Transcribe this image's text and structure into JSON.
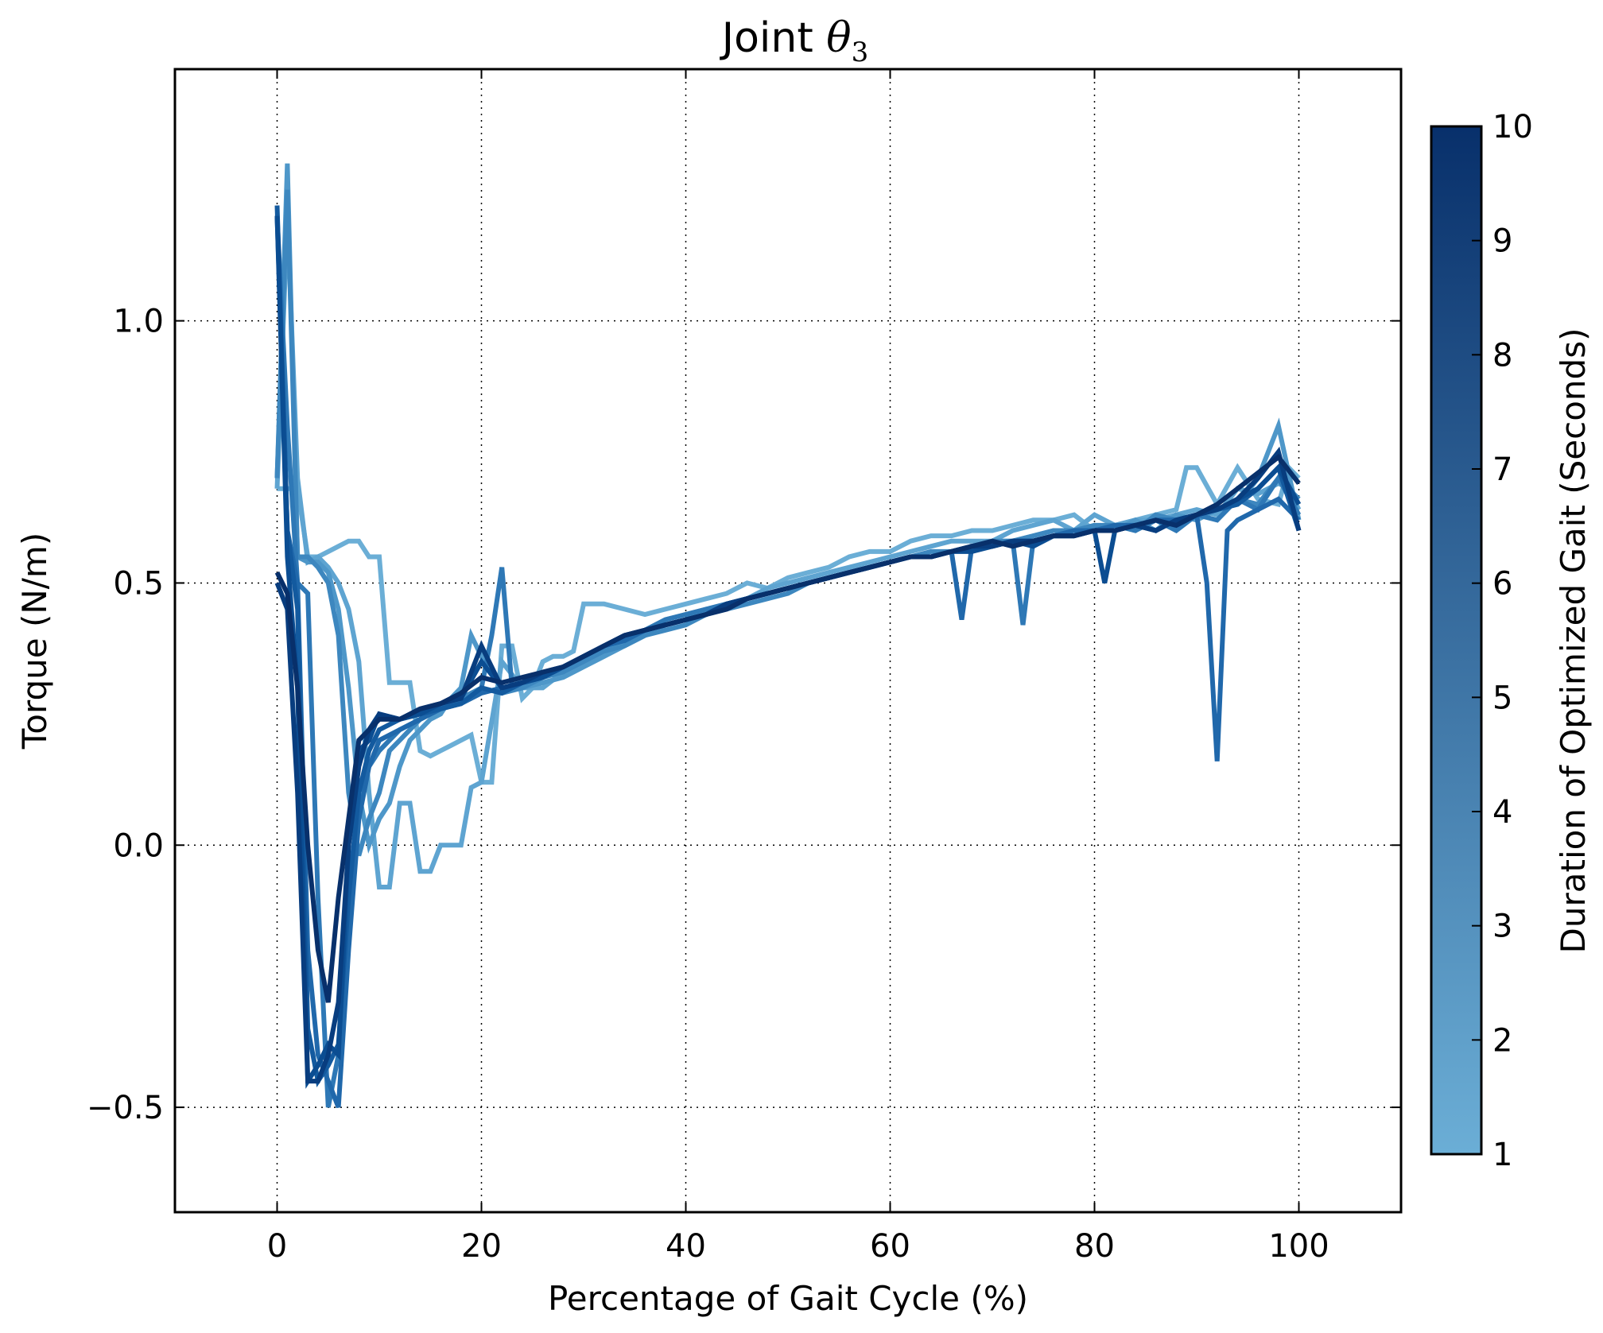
{
  "chart_data": {
    "type": "line",
    "title_text": "Joint ",
    "title_symbol": "θ",
    "title_subscript": "3",
    "xlabel": "Percentage of Gait Cycle (%)",
    "ylabel": "Torque (N/m)",
    "xlim": [
      -10,
      110
    ],
    "ylim": [
      -0.7,
      1.48
    ],
    "xticks": [
      0,
      20,
      40,
      60,
      80,
      100
    ],
    "yticks": [
      -0.5,
      0.0,
      0.5,
      1.0
    ],
    "ytick_labels": [
      "−0.5",
      "0.0",
      "0.5",
      "1.0"
    ],
    "grid": true,
    "colorbar": {
      "label": "Duration of Optimized Gait (Seconds)",
      "min": 1,
      "max": 10,
      "ticks": [
        1,
        2,
        3,
        4,
        5,
        6,
        7,
        8,
        9,
        10
      ],
      "color_low": "#6baed6",
      "color_high": "#08306b"
    },
    "series": [
      {
        "duration": 1,
        "color": "#6baed6",
        "x": [
          0,
          1,
          2,
          3,
          4,
          5,
          6,
          7,
          8,
          9,
          10,
          11,
          12,
          13,
          14,
          15,
          16,
          17,
          18,
          19,
          20,
          21,
          22,
          23,
          24,
          25,
          26,
          27,
          28,
          29,
          30,
          32,
          34,
          36,
          38,
          40,
          42,
          44,
          46,
          48,
          50,
          52,
          54,
          56,
          58,
          60,
          62,
          64,
          66,
          68,
          70,
          72,
          74,
          76,
          78,
          80,
          82,
          84,
          86,
          88,
          89,
          90,
          92,
          94,
          96,
          98,
          99,
          100
        ],
        "y": [
          0.68,
          0.68,
          0.68,
          0.55,
          0.55,
          0.56,
          0.57,
          0.58,
          0.58,
          0.55,
          0.55,
          0.31,
          0.31,
          0.31,
          0.18,
          0.17,
          0.18,
          0.19,
          0.2,
          0.21,
          0.12,
          0.12,
          0.38,
          0.38,
          0.28,
          0.3,
          0.35,
          0.36,
          0.36,
          0.37,
          0.46,
          0.46,
          0.45,
          0.44,
          0.45,
          0.46,
          0.47,
          0.48,
          0.5,
          0.49,
          0.51,
          0.52,
          0.53,
          0.55,
          0.56,
          0.56,
          0.58,
          0.59,
          0.59,
          0.6,
          0.6,
          0.61,
          0.62,
          0.62,
          0.63,
          0.6,
          0.61,
          0.62,
          0.63,
          0.64,
          0.72,
          0.72,
          0.65,
          0.72,
          0.66,
          0.65,
          0.72,
          0.7
        ]
      },
      {
        "duration": 2,
        "color": "#5ea4d1",
        "x": [
          0,
          1,
          2,
          3,
          4,
          5,
          6,
          7,
          8,
          9,
          10,
          11,
          12,
          13,
          14,
          15,
          16,
          17,
          18,
          19,
          20,
          22,
          24,
          26,
          28,
          30,
          32,
          34,
          36,
          38,
          40,
          42,
          44,
          46,
          48,
          50,
          52,
          54,
          56,
          58,
          60,
          62,
          64,
          66,
          68,
          70,
          72,
          74,
          76,
          78,
          80,
          82,
          84,
          86,
          88,
          90,
          92,
          94,
          96,
          98,
          99,
          100
        ],
        "y": [
          0.68,
          1.2,
          0.7,
          0.54,
          0.55,
          0.53,
          0.5,
          0.45,
          0.35,
          0.1,
          -0.08,
          -0.08,
          0.08,
          0.08,
          -0.05,
          -0.05,
          0.0,
          0.0,
          0.0,
          0.11,
          0.12,
          0.35,
          0.3,
          0.3,
          0.33,
          0.36,
          0.37,
          0.39,
          0.41,
          0.43,
          0.44,
          0.45,
          0.46,
          0.47,
          0.49,
          0.5,
          0.51,
          0.52,
          0.53,
          0.54,
          0.55,
          0.56,
          0.57,
          0.58,
          0.58,
          0.58,
          0.6,
          0.61,
          0.62,
          0.6,
          0.63,
          0.61,
          0.62,
          0.62,
          0.63,
          0.64,
          0.63,
          0.68,
          0.67,
          0.69,
          0.68,
          0.64
        ]
      },
      {
        "duration": 3,
        "color": "#4e97c9",
        "x": [
          0,
          1,
          2,
          3,
          4,
          5,
          6,
          7,
          8,
          9,
          10,
          11,
          12,
          13,
          14,
          15,
          16,
          17,
          18,
          19,
          20,
          22,
          24,
          26,
          28,
          30,
          32,
          34,
          36,
          38,
          40,
          42,
          44,
          46,
          48,
          50,
          52,
          54,
          56,
          58,
          60,
          62,
          64,
          66,
          68,
          70,
          72,
          74,
          76,
          78,
          80,
          82,
          84,
          86,
          88,
          90,
          92,
          94,
          96,
          98,
          100
        ],
        "y": [
          0.7,
          1.3,
          0.55,
          0.54,
          0.54,
          0.52,
          0.45,
          0.3,
          0.1,
          0.0,
          0.05,
          0.08,
          0.15,
          0.2,
          0.22,
          0.24,
          0.25,
          0.28,
          0.3,
          0.4,
          0.36,
          0.3,
          0.3,
          0.31,
          0.32,
          0.34,
          0.36,
          0.38,
          0.4,
          0.42,
          0.43,
          0.45,
          0.45,
          0.47,
          0.48,
          0.49,
          0.5,
          0.51,
          0.52,
          0.53,
          0.54,
          0.55,
          0.55,
          0.56,
          0.57,
          0.58,
          0.58,
          0.59,
          0.6,
          0.6,
          0.61,
          0.6,
          0.62,
          0.6,
          0.63,
          0.62,
          0.64,
          0.65,
          0.7,
          0.8,
          0.62
        ]
      },
      {
        "duration": 4,
        "color": "#3d87bf",
        "x": [
          0,
          1,
          2,
          3,
          4,
          5,
          6,
          7,
          8,
          9,
          10,
          11,
          12,
          13,
          14,
          15,
          16,
          18,
          20,
          22,
          24,
          26,
          28,
          30,
          32,
          34,
          36,
          38,
          40,
          42,
          44,
          46,
          48,
          50,
          52,
          54,
          56,
          58,
          60,
          62,
          64,
          66,
          68,
          70,
          72,
          74,
          76,
          78,
          80,
          82,
          84,
          86,
          88,
          90,
          92,
          94,
          96,
          98,
          100
        ],
        "y": [
          0.7,
          1.25,
          0.55,
          0.55,
          0.53,
          0.5,
          0.4,
          0.1,
          -0.02,
          0.05,
          0.1,
          0.18,
          0.2,
          0.22,
          0.24,
          0.25,
          0.26,
          0.28,
          0.3,
          0.29,
          0.3,
          0.32,
          0.33,
          0.35,
          0.37,
          0.38,
          0.4,
          0.41,
          0.42,
          0.44,
          0.45,
          0.46,
          0.47,
          0.48,
          0.5,
          0.51,
          0.52,
          0.53,
          0.54,
          0.55,
          0.56,
          0.56,
          0.57,
          0.58,
          0.58,
          0.59,
          0.6,
          0.6,
          0.61,
          0.61,
          0.6,
          0.63,
          0.62,
          0.63,
          0.64,
          0.66,
          0.65,
          0.7,
          0.66
        ]
      },
      {
        "duration": 5,
        "color": "#2e78b6",
        "x": [
          0,
          1,
          2,
          3,
          4,
          5,
          6,
          7,
          8,
          9,
          10,
          11,
          12,
          13,
          14,
          15,
          16,
          18,
          20,
          21,
          22,
          23,
          24,
          26,
          28,
          30,
          32,
          34,
          36,
          38,
          40,
          42,
          44,
          46,
          48,
          50,
          52,
          54,
          56,
          58,
          60,
          62,
          64,
          66,
          68,
          70,
          72,
          73,
          74,
          76,
          78,
          80,
          82,
          84,
          86,
          88,
          90,
          92,
          94,
          96,
          98,
          100
        ],
        "y": [
          1.2,
          0.8,
          0.5,
          0.48,
          -0.1,
          -0.5,
          -0.4,
          -0.1,
          0.1,
          0.15,
          0.18,
          0.2,
          0.22,
          0.23,
          0.24,
          0.25,
          0.26,
          0.27,
          0.3,
          0.4,
          0.53,
          0.3,
          0.31,
          0.32,
          0.34,
          0.36,
          0.38,
          0.39,
          0.41,
          0.43,
          0.44,
          0.45,
          0.46,
          0.47,
          0.48,
          0.49,
          0.5,
          0.51,
          0.52,
          0.53,
          0.54,
          0.55,
          0.55,
          0.56,
          0.57,
          0.57,
          0.58,
          0.42,
          0.58,
          0.59,
          0.59,
          0.6,
          0.61,
          0.6,
          0.62,
          0.6,
          0.63,
          0.62,
          0.66,
          0.64,
          0.7,
          0.63
        ]
      },
      {
        "duration": 6,
        "color": "#2068ab",
        "x": [
          0,
          1,
          2,
          3,
          4,
          5,
          6,
          7,
          8,
          9,
          10,
          12,
          14,
          15,
          16,
          18,
          20,
          22,
          24,
          26,
          28,
          30,
          32,
          34,
          36,
          38,
          40,
          42,
          44,
          46,
          48,
          50,
          52,
          54,
          56,
          58,
          60,
          62,
          64,
          66,
          67,
          68,
          70,
          72,
          74,
          76,
          78,
          80,
          82,
          84,
          86,
          88,
          90,
          91,
          92,
          93,
          94,
          96,
          98,
          100
        ],
        "y": [
          1.2,
          0.6,
          0.5,
          -0.2,
          -0.4,
          -0.45,
          -0.5,
          -0.2,
          0.05,
          0.15,
          0.2,
          0.22,
          0.24,
          0.25,
          0.26,
          0.27,
          0.29,
          0.3,
          0.31,
          0.32,
          0.34,
          0.36,
          0.38,
          0.39,
          0.41,
          0.42,
          0.43,
          0.44,
          0.46,
          0.47,
          0.48,
          0.49,
          0.5,
          0.51,
          0.52,
          0.53,
          0.54,
          0.55,
          0.55,
          0.56,
          0.43,
          0.57,
          0.57,
          0.58,
          0.58,
          0.59,
          0.6,
          0.6,
          0.61,
          0.61,
          0.62,
          0.62,
          0.63,
          0.5,
          0.16,
          0.6,
          0.62,
          0.64,
          0.66,
          0.62
        ]
      },
      {
        "duration": 7,
        "color": "#135a9f",
        "x": [
          0,
          1,
          2,
          3,
          4,
          5,
          6,
          7,
          8,
          9,
          10,
          12,
          14,
          16,
          18,
          20,
          22,
          24,
          26,
          28,
          30,
          32,
          34,
          36,
          38,
          40,
          42,
          44,
          46,
          48,
          50,
          52,
          54,
          56,
          58,
          60,
          62,
          64,
          66,
          68,
          70,
          72,
          74,
          76,
          78,
          80,
          82,
          84,
          86,
          88,
          90,
          92,
          94,
          96,
          98,
          100
        ],
        "y": [
          1.22,
          0.6,
          0.45,
          -0.35,
          -0.45,
          -0.42,
          -0.38,
          -0.1,
          0.1,
          0.18,
          0.22,
          0.24,
          0.25,
          0.26,
          0.27,
          0.3,
          0.29,
          0.31,
          0.32,
          0.34,
          0.36,
          0.38,
          0.4,
          0.41,
          0.42,
          0.43,
          0.44,
          0.46,
          0.47,
          0.48,
          0.49,
          0.5,
          0.51,
          0.52,
          0.53,
          0.54,
          0.55,
          0.55,
          0.56,
          0.57,
          0.57,
          0.58,
          0.58,
          0.59,
          0.59,
          0.6,
          0.6,
          0.61,
          0.62,
          0.61,
          0.63,
          0.64,
          0.65,
          0.68,
          0.72,
          0.6
        ]
      },
      {
        "duration": 8,
        "color": "#0b4d92",
        "x": [
          0,
          1,
          2,
          3,
          4,
          5,
          6,
          7,
          8,
          9,
          10,
          12,
          14,
          16,
          18,
          20,
          22,
          24,
          26,
          28,
          30,
          32,
          34,
          36,
          38,
          40,
          42,
          44,
          46,
          48,
          50,
          52,
          54,
          56,
          58,
          60,
          62,
          64,
          66,
          68,
          70,
          72,
          74,
          76,
          78,
          80,
          81,
          82,
          84,
          86,
          88,
          90,
          92,
          94,
          96,
          98,
          100
        ],
        "y": [
          1.2,
          0.55,
          0.3,
          -0.45,
          -0.42,
          -0.38,
          -0.4,
          0.0,
          0.18,
          0.2,
          0.25,
          0.24,
          0.25,
          0.27,
          0.28,
          0.35,
          0.3,
          0.31,
          0.32,
          0.34,
          0.36,
          0.38,
          0.4,
          0.41,
          0.42,
          0.43,
          0.44,
          0.46,
          0.47,
          0.48,
          0.49,
          0.5,
          0.51,
          0.52,
          0.53,
          0.54,
          0.55,
          0.55,
          0.56,
          0.56,
          0.57,
          0.58,
          0.57,
          0.59,
          0.59,
          0.6,
          0.5,
          0.6,
          0.61,
          0.6,
          0.62,
          0.63,
          0.64,
          0.66,
          0.68,
          0.72,
          0.65
        ]
      },
      {
        "duration": 9,
        "color": "#083d7f",
        "x": [
          0,
          1,
          2,
          3,
          4,
          5,
          6,
          7,
          8,
          9,
          10,
          12,
          14,
          16,
          18,
          20,
          22,
          24,
          26,
          28,
          30,
          32,
          34,
          36,
          38,
          40,
          42,
          44,
          46,
          48,
          50,
          52,
          54,
          56,
          58,
          60,
          62,
          64,
          66,
          68,
          70,
          72,
          74,
          76,
          78,
          80,
          82,
          84,
          86,
          88,
          90,
          92,
          94,
          96,
          98,
          100
        ],
        "y": [
          0.5,
          0.45,
          0.1,
          -0.45,
          -0.45,
          -0.4,
          -0.3,
          0.0,
          0.15,
          0.22,
          0.25,
          0.24,
          0.26,
          0.27,
          0.28,
          0.38,
          0.3,
          0.31,
          0.33,
          0.34,
          0.36,
          0.38,
          0.4,
          0.41,
          0.42,
          0.43,
          0.44,
          0.46,
          0.47,
          0.48,
          0.49,
          0.5,
          0.51,
          0.52,
          0.53,
          0.54,
          0.55,
          0.55,
          0.56,
          0.57,
          0.57,
          0.58,
          0.58,
          0.59,
          0.59,
          0.6,
          0.6,
          0.61,
          0.6,
          0.62,
          0.63,
          0.64,
          0.66,
          0.7,
          0.75,
          0.6
        ]
      },
      {
        "duration": 10,
        "color": "#08306b",
        "x": [
          0,
          1,
          2,
          3,
          4,
          5,
          6,
          7,
          8,
          9,
          10,
          12,
          14,
          16,
          18,
          20,
          22,
          24,
          26,
          28,
          30,
          32,
          34,
          36,
          38,
          40,
          42,
          44,
          46,
          48,
          50,
          52,
          54,
          56,
          58,
          60,
          62,
          64,
          66,
          68,
          70,
          72,
          74,
          76,
          78,
          80,
          82,
          84,
          86,
          88,
          90,
          92,
          94,
          96,
          98,
          100
        ],
        "y": [
          0.52,
          0.48,
          0.3,
          0.0,
          -0.2,
          -0.3,
          -0.1,
          0.05,
          0.2,
          0.22,
          0.24,
          0.24,
          0.26,
          0.27,
          0.29,
          0.32,
          0.31,
          0.32,
          0.33,
          0.34,
          0.36,
          0.38,
          0.4,
          0.41,
          0.42,
          0.43,
          0.44,
          0.45,
          0.47,
          0.48,
          0.49,
          0.5,
          0.51,
          0.52,
          0.53,
          0.54,
          0.55,
          0.55,
          0.56,
          0.57,
          0.58,
          0.57,
          0.58,
          0.59,
          0.59,
          0.6,
          0.6,
          0.61,
          0.62,
          0.61,
          0.63,
          0.65,
          0.68,
          0.71,
          0.74,
          0.69
        ]
      }
    ]
  }
}
